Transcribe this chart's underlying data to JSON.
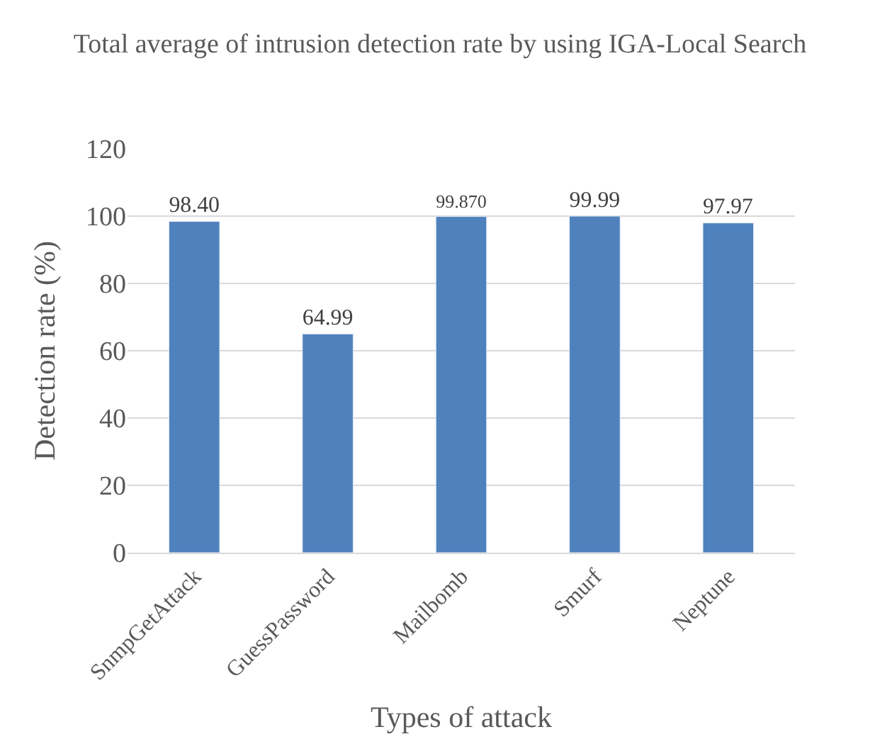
{
  "chart_data": {
    "type": "bar",
    "title": "Total average of intrusion detection rate by using IGA-Local Search",
    "xlabel": "Types of attack",
    "ylabel": "Detection rate (%)",
    "categories": [
      "SnmpGetAttack",
      "GuessPassword",
      "Mailbomb",
      "Smurf",
      "Neptune"
    ],
    "values": [
      98.4,
      64.99,
      99.87,
      99.99,
      97.97
    ],
    "value_labels": [
      "98.40",
      "64.99",
      "99.870",
      "99.99",
      "97.97"
    ],
    "color": "#4f81bd",
    "ylim": [
      0,
      120
    ],
    "yticks": [
      0,
      20,
      40,
      60,
      80,
      100,
      120
    ],
    "grid": "y"
  }
}
